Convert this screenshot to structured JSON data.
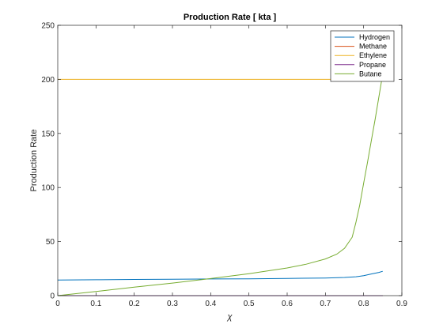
{
  "chart_data": {
    "type": "line",
    "title": "Production Rate [ kta ]",
    "xlabel": "χ",
    "ylabel": "Production Rate",
    "xlim": [
      0,
      0.9
    ],
    "ylim": [
      0,
      250
    ],
    "xticks": [
      0,
      0.1,
      0.2,
      0.3,
      0.4,
      0.5,
      0.6,
      0.7,
      0.8,
      0.9
    ],
    "xtick_labels": [
      "0",
      "0.1",
      "0.2",
      "0.3",
      "0.4",
      "0.5",
      "0.6",
      "0.7",
      "0.8",
      "0.9"
    ],
    "yticks": [
      0,
      50,
      100,
      150,
      200,
      250
    ],
    "ytick_labels": [
      "0",
      "50",
      "100",
      "150",
      "200",
      "250"
    ],
    "grid": false,
    "legend_position": "top-right",
    "series": [
      {
        "name": "Hydrogen",
        "color": "#0072BD",
        "x": [
          0,
          0.1,
          0.2,
          0.3,
          0.4,
          0.5,
          0.6,
          0.7,
          0.75,
          0.78,
          0.8,
          0.82,
          0.84,
          0.85
        ],
        "y": [
          14.5,
          14.7,
          15.0,
          15.2,
          15.4,
          15.6,
          15.9,
          16.3,
          16.8,
          17.5,
          18.5,
          20.0,
          21.5,
          22.5
        ]
      },
      {
        "name": "Methane",
        "color": "#D95319",
        "x": [
          0,
          0.85
        ],
        "y": [
          0,
          0
        ]
      },
      {
        "name": "Ethylene",
        "color": "#EDB120",
        "x": [
          0,
          0.85
        ],
        "y": [
          200,
          200
        ]
      },
      {
        "name": "Propane",
        "color": "#7E2F8E",
        "x": [
          0,
          0.85
        ],
        "y": [
          0,
          0
        ]
      },
      {
        "name": "Butane",
        "color": "#77AC30",
        "x": [
          0,
          0.1,
          0.2,
          0.3,
          0.4,
          0.5,
          0.6,
          0.65,
          0.7,
          0.73,
          0.75,
          0.77,
          0.78,
          0.79,
          0.8,
          0.81,
          0.82,
          0.83,
          0.84,
          0.85
        ],
        "y": [
          0,
          3.8,
          7.8,
          11.6,
          15.8,
          20.3,
          25.6,
          29.1,
          33.9,
          38.4,
          43.7,
          54.0,
          68.0,
          84.0,
          104.0,
          123.0,
          143.0,
          163.0,
          184.0,
          205.0
        ]
      }
    ]
  }
}
